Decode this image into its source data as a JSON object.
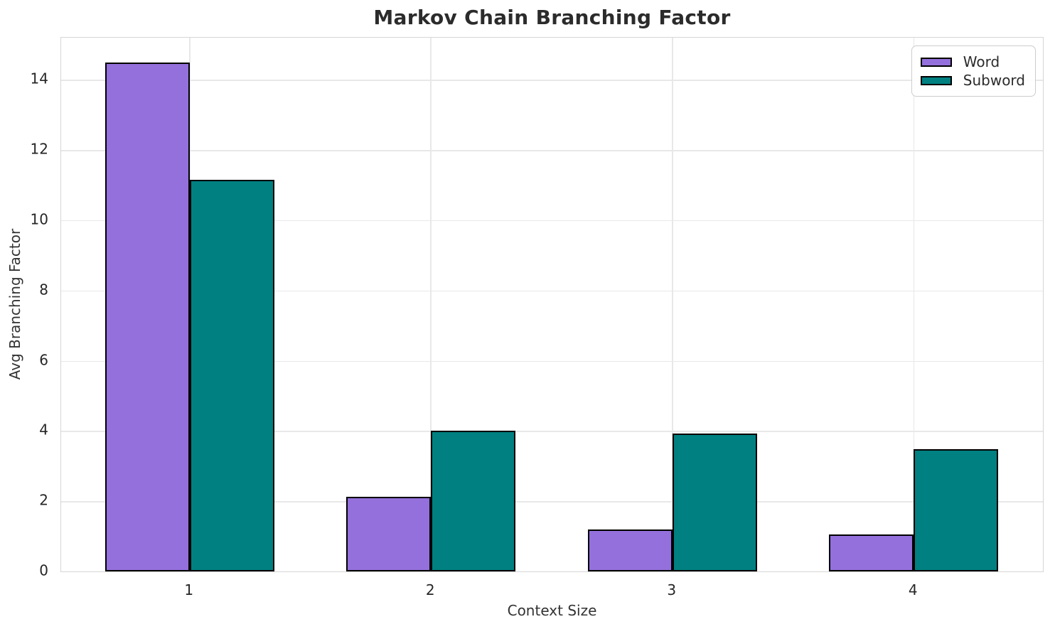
{
  "chart_data": {
    "type": "bar",
    "title": "Markov Chain Branching Factor",
    "xlabel": "Context Size",
    "ylabel": "Avg Branching Factor",
    "categories": [
      "1",
      "2",
      "3",
      "4"
    ],
    "series": [
      {
        "name": "Word",
        "color": "#9370DB",
        "values": [
          14.5,
          2.12,
          1.2,
          1.05
        ]
      },
      {
        "name": "Subword",
        "color": "#008080",
        "values": [
          11.15,
          4.0,
          3.92,
          3.48
        ]
      }
    ],
    "ylim": [
      0,
      15.2
    ],
    "yticks": [
      0,
      2,
      4,
      6,
      8,
      10,
      12,
      14
    ],
    "bar_edge_color": "#000000",
    "grid": true,
    "legend_position": "upper right",
    "style": {
      "grid_color": "#e8e8e8",
      "spine_color": "#d6d6d6",
      "text_color": "#262626",
      "title_color": "#2b2b2b"
    }
  }
}
